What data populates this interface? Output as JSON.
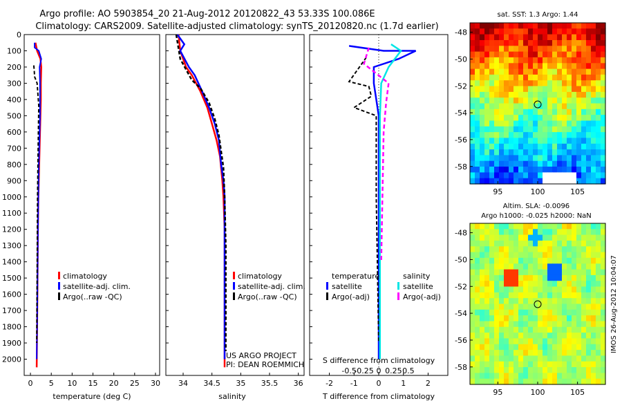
{
  "header": {
    "line1": "Argo profile: AO 5903854_20 21-Aug-2012 20120822_43 53.33S 100.086E",
    "line2": "Climatology: CARS2009. Satellite-adjusted climatology: synTS_20120820.nc (1.7d earlier)"
  },
  "colors": {
    "climatology": "#ff0000",
    "satellite": "#0000ff",
    "argo": "#000000",
    "satellite_s": "#00e5e5",
    "argo_s": "#ff00ff"
  },
  "chart_data": [
    {
      "type": "line",
      "id": "temperature",
      "xlabel": "temperature (deg C)",
      "ylabel": "",
      "xlim": [
        -1.5,
        31
      ],
      "ylim": [
        2100,
        0
      ],
      "xticks": [
        0,
        5,
        10,
        15,
        20,
        25,
        30
      ],
      "yticks": [
        0,
        100,
        200,
        300,
        400,
        500,
        600,
        700,
        800,
        900,
        1000,
        1100,
        1200,
        1300,
        1400,
        1500,
        1600,
        1700,
        1800,
        1900,
        2000
      ],
      "legend": {
        "position": "bottom-right",
        "entries": [
          "climatology",
          "satellite-adj. clim.",
          "Argo(..raw -QC)"
        ]
      },
      "series": [
        {
          "name": "climatology",
          "x": [
            1.2,
            1.6,
            2.4,
            2.6,
            2.5,
            2.5,
            2.4,
            2.3,
            2.2,
            2.1,
            2.0,
            1.9,
            1.8,
            1.7,
            1.6,
            1.5
          ],
          "y": [
            50,
            100,
            150,
            200,
            300,
            400,
            500,
            600,
            700,
            800,
            900,
            1000,
            1200,
            1500,
            1800,
            2050
          ]
        },
        {
          "name": "satellite-adj. clim.",
          "x": [
            1.0,
            1.0,
            2.0,
            2.6,
            2.2,
            2.3,
            2.3,
            2.3,
            2.2,
            2.1,
            2.0,
            1.9,
            1.8,
            1.7,
            1.6,
            1.5
          ],
          "y": [
            50,
            80,
            100,
            150,
            200,
            300,
            400,
            500,
            600,
            700,
            800,
            1000,
            1200,
            1500,
            1800,
            2000
          ]
        },
        {
          "name": "Argo(..raw -QC)",
          "x": [
            0.8,
            0.9,
            1.0,
            1.6,
            2.0,
            1.9,
            1.7,
            1.6,
            1.5
          ],
          "y": [
            190,
            220,
            260,
            300,
            440,
            600,
            1000,
            1500,
            1900
          ]
        }
      ]
    },
    {
      "type": "line",
      "id": "salinity",
      "xlabel": "salinity",
      "ylabel": "",
      "xlim": [
        33.7,
        36.1
      ],
      "ylim": [
        2100,
        0
      ],
      "xticks": [
        34,
        34.5,
        35,
        35.5,
        36
      ],
      "legend": {
        "position": "bottom-right",
        "entries": [
          "climatology",
          "satellite-adj. clim.",
          "Argo(..raw -QC)"
        ]
      },
      "annotation": [
        "US ARGO PROJECT",
        "PI: DEAN ROEMMICH"
      ],
      "series": [
        {
          "name": "climatology",
          "x": [
            33.92,
            33.95,
            34.05,
            34.15,
            34.3,
            34.42,
            34.5,
            34.58,
            34.64,
            34.68,
            34.7,
            34.72,
            34.72,
            34.72
          ],
          "y": [
            0,
            100,
            200,
            250,
            350,
            450,
            550,
            650,
            750,
            900,
            1000,
            1200,
            1500,
            2050
          ]
        },
        {
          "name": "satellite-adj. clim.",
          "x": [
            33.9,
            34.02,
            33.95,
            34.1,
            34.2,
            34.33,
            34.45,
            34.55,
            34.62,
            34.66,
            34.7,
            34.72,
            34.72,
            34.72,
            34.72
          ],
          "y": [
            0,
            60,
            100,
            200,
            250,
            350,
            450,
            550,
            650,
            800,
            900,
            1000,
            1200,
            1500,
            2000
          ]
        },
        {
          "name": "Argo(..raw -QC)",
          "x": [
            33.88,
            33.95,
            34.15,
            34.3,
            34.45,
            34.55,
            34.62,
            34.66,
            34.7,
            34.72,
            34.74,
            34.74
          ],
          "y": [
            0,
            150,
            280,
            330,
            420,
            520,
            620,
            720,
            820,
            1000,
            1300,
            1950
          ]
        }
      ]
    },
    {
      "type": "line",
      "id": "difference",
      "xlabel": "T difference from climatology",
      "xlabel_top": "S difference from climatology",
      "xlim": [
        -2.8,
        2.8
      ],
      "ylim": [
        2100,
        0
      ],
      "xticks": [
        -2,
        -1,
        0,
        1,
        2
      ],
      "xticks_s_labels": [
        "-0.5",
        "-0.25",
        "0",
        "0.25",
        "0.5"
      ],
      "legend": {
        "position": "bottom",
        "temperature_title": "temperature",
        "salinity_title": "salinity",
        "entries_t": [
          "satellite",
          "Argo(-adj)"
        ],
        "entries_s": [
          "satellite",
          "Argo(-adj)"
        ]
      },
      "series": [
        {
          "name": "satellite",
          "x": [
            -1.2,
            0.2,
            1.5,
            0.8,
            -0.2,
            -0.2,
            0.0,
            0.0,
            0.0
          ],
          "y": [
            70,
            100,
            100,
            150,
            200,
            300,
            500,
            1000,
            2000
          ]
        },
        {
          "name": "Argo(-adj)",
          "x": [
            -0.5,
            -1.2,
            -0.4,
            -0.3,
            -1.0,
            -0.1,
            -0.1,
            0.0
          ],
          "y": [
            140,
            290,
            320,
            380,
            450,
            500,
            1000,
            1900
          ]
        },
        {
          "name": "satellite",
          "x": [
            0.5,
            0.9,
            0.4,
            0.1,
            0.05,
            0.05,
            0.05
          ],
          "y": [
            60,
            100,
            200,
            300,
            500,
            1000,
            2000
          ]
        },
        {
          "name": "Argo(-adj)",
          "x": [
            -0.4,
            -0.6,
            -0.1,
            0.4,
            0.3,
            0.2,
            0.1
          ],
          "y": [
            80,
            180,
            240,
            300,
            420,
            600,
            1400
          ]
        }
      ]
    },
    {
      "type": "heatmap",
      "id": "sst-map",
      "title": "sat. SST: 1.3 Argo: 1.44",
      "xticks": [
        95,
        100,
        105
      ],
      "yticks": [
        -48,
        -50,
        -52,
        -54,
        -56,
        -58
      ]
    },
    {
      "type": "heatmap",
      "id": "sla-map",
      "title_line1": "Altim. SLA: -0.0096",
      "title_line2": "Argo h1000: -0.025 h2000: NaN",
      "side_label": "IMOS 26-Aug-2012 10:04:07",
      "xticks": [
        95,
        100,
        105
      ],
      "yticks": [
        -48,
        -50,
        -52,
        -54,
        -56,
        -58
      ]
    }
  ]
}
